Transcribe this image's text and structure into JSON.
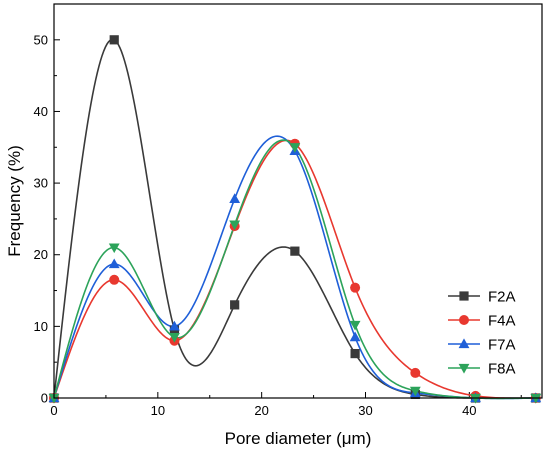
{
  "chart_data": {
    "type": "line",
    "xlabel": "Pore diameter (μm)",
    "ylabel": "Frequency (%)",
    "xlim": [
      0,
      47
    ],
    "ylim": [
      0,
      55
    ],
    "xticks": [
      0,
      10,
      20,
      30,
      40
    ],
    "yticks": [
      0,
      10,
      20,
      30,
      40,
      50
    ],
    "x": [
      0,
      5.8,
      11.6,
      17.4,
      23.2,
      29.0,
      34.8,
      40.6,
      46.4
    ],
    "smoothing": "spline",
    "legend_position": "bottom-right",
    "series": [
      {
        "name": "F2A",
        "color": "#3a3a3a",
        "marker": "square",
        "values": [
          0,
          50,
          9.5,
          13,
          20.5,
          6.2,
          0.5,
          0,
          0
        ]
      },
      {
        "name": "F4A",
        "color": "#e8382f",
        "marker": "circle",
        "values": [
          0,
          16.5,
          8,
          24,
          35.5,
          15.4,
          3.5,
          0.3,
          0
        ]
      },
      {
        "name": "F7A",
        "color": "#1f5fd8",
        "marker": "triangle-up",
        "values": [
          0,
          18.7,
          10,
          27.8,
          34.5,
          8.5,
          0.7,
          0,
          0
        ]
      },
      {
        "name": "F8A",
        "color": "#2ca35a",
        "marker": "triangle-down",
        "values": [
          0,
          21,
          8.5,
          24.2,
          35,
          10.2,
          1,
          0,
          0
        ]
      }
    ]
  }
}
